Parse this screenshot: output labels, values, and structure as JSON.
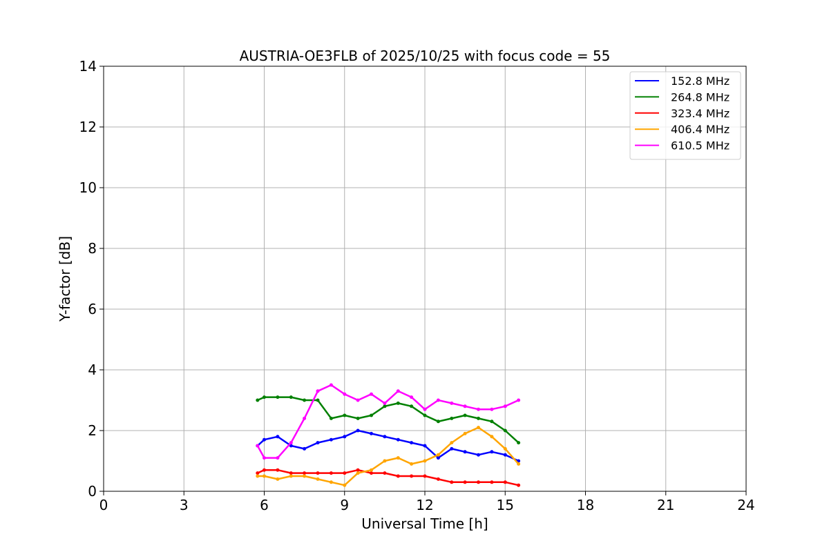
{
  "chart_data": {
    "type": "line",
    "title": "AUSTRIA-OE3FLB of 2025/10/25 with focus code = 55",
    "xlabel": "Universal Time [h]",
    "ylabel": "Y-factor [dB]",
    "xlim": [
      0,
      24
    ],
    "ylim": [
      0,
      14
    ],
    "xticks": [
      0,
      3,
      6,
      9,
      12,
      15,
      18,
      21,
      24
    ],
    "yticks": [
      0,
      2,
      4,
      6,
      8,
      10,
      12,
      14
    ],
    "grid": true,
    "legend_position": "top-right",
    "series": [
      {
        "name": "152.8 MHz",
        "color": "#0000ff",
        "x": [
          5.75,
          6.0,
          6.5,
          7.0,
          7.5,
          8.0,
          8.5,
          9.0,
          9.5,
          10.0,
          10.5,
          11.0,
          11.5,
          12.0,
          12.5,
          13.0,
          13.5,
          14.0,
          14.5,
          15.0,
          15.5
        ],
        "y": [
          1.5,
          1.7,
          1.8,
          1.5,
          1.4,
          1.6,
          1.7,
          1.8,
          2.0,
          1.9,
          1.8,
          1.7,
          1.6,
          1.5,
          1.1,
          1.4,
          1.3,
          1.2,
          1.3,
          1.2,
          1.0
        ]
      },
      {
        "name": "264.8 MHz",
        "color": "#008000",
        "x": [
          5.75,
          6.0,
          6.5,
          7.0,
          7.5,
          8.0,
          8.5,
          9.0,
          9.5,
          10.0,
          10.5,
          11.0,
          11.5,
          12.0,
          12.5,
          13.0,
          13.5,
          14.0,
          14.5,
          15.0,
          15.5
        ],
        "y": [
          3.0,
          3.1,
          3.1,
          3.1,
          3.0,
          3.0,
          2.4,
          2.5,
          2.4,
          2.5,
          2.8,
          2.9,
          2.8,
          2.5,
          2.3,
          2.4,
          2.5,
          2.4,
          2.3,
          2.0,
          1.6
        ]
      },
      {
        "name": "323.4 MHz",
        "color": "#ff0000",
        "x": [
          5.75,
          6.0,
          6.5,
          7.0,
          7.5,
          8.0,
          8.5,
          9.0,
          9.5,
          10.0,
          10.5,
          11.0,
          11.5,
          12.0,
          12.5,
          13.0,
          13.5,
          14.0,
          14.5,
          15.0,
          15.5
        ],
        "y": [
          0.6,
          0.7,
          0.7,
          0.6,
          0.6,
          0.6,
          0.6,
          0.6,
          0.7,
          0.6,
          0.6,
          0.5,
          0.5,
          0.5,
          0.4,
          0.3,
          0.3,
          0.3,
          0.3,
          0.3,
          0.2
        ]
      },
      {
        "name": "406.4 MHz",
        "color": "#ffa500",
        "x": [
          5.75,
          6.0,
          6.5,
          7.0,
          7.5,
          8.0,
          8.5,
          9.0,
          9.5,
          10.0,
          10.5,
          11.0,
          11.5,
          12.0,
          12.5,
          13.0,
          13.5,
          14.0,
          14.5,
          15.0,
          15.5
        ],
        "y": [
          0.5,
          0.5,
          0.4,
          0.5,
          0.5,
          0.4,
          0.3,
          0.2,
          0.6,
          0.7,
          1.0,
          1.1,
          0.9,
          1.0,
          1.2,
          1.6,
          1.9,
          2.1,
          1.8,
          1.4,
          0.9
        ]
      },
      {
        "name": "610.5 MHz",
        "color": "#ff00ff",
        "x": [
          5.75,
          6.0,
          6.5,
          7.0,
          7.5,
          8.0,
          8.5,
          9.0,
          9.5,
          10.0,
          10.5,
          11.0,
          11.5,
          12.0,
          12.5,
          13.0,
          13.5,
          14.0,
          14.5,
          15.0,
          15.5
        ],
        "y": [
          1.5,
          1.1,
          1.1,
          1.6,
          2.4,
          3.3,
          3.5,
          3.2,
          3.0,
          3.2,
          2.9,
          3.3,
          3.1,
          2.7,
          3.0,
          2.9,
          2.8,
          2.7,
          2.7,
          2.8,
          3.0
        ]
      }
    ]
  }
}
